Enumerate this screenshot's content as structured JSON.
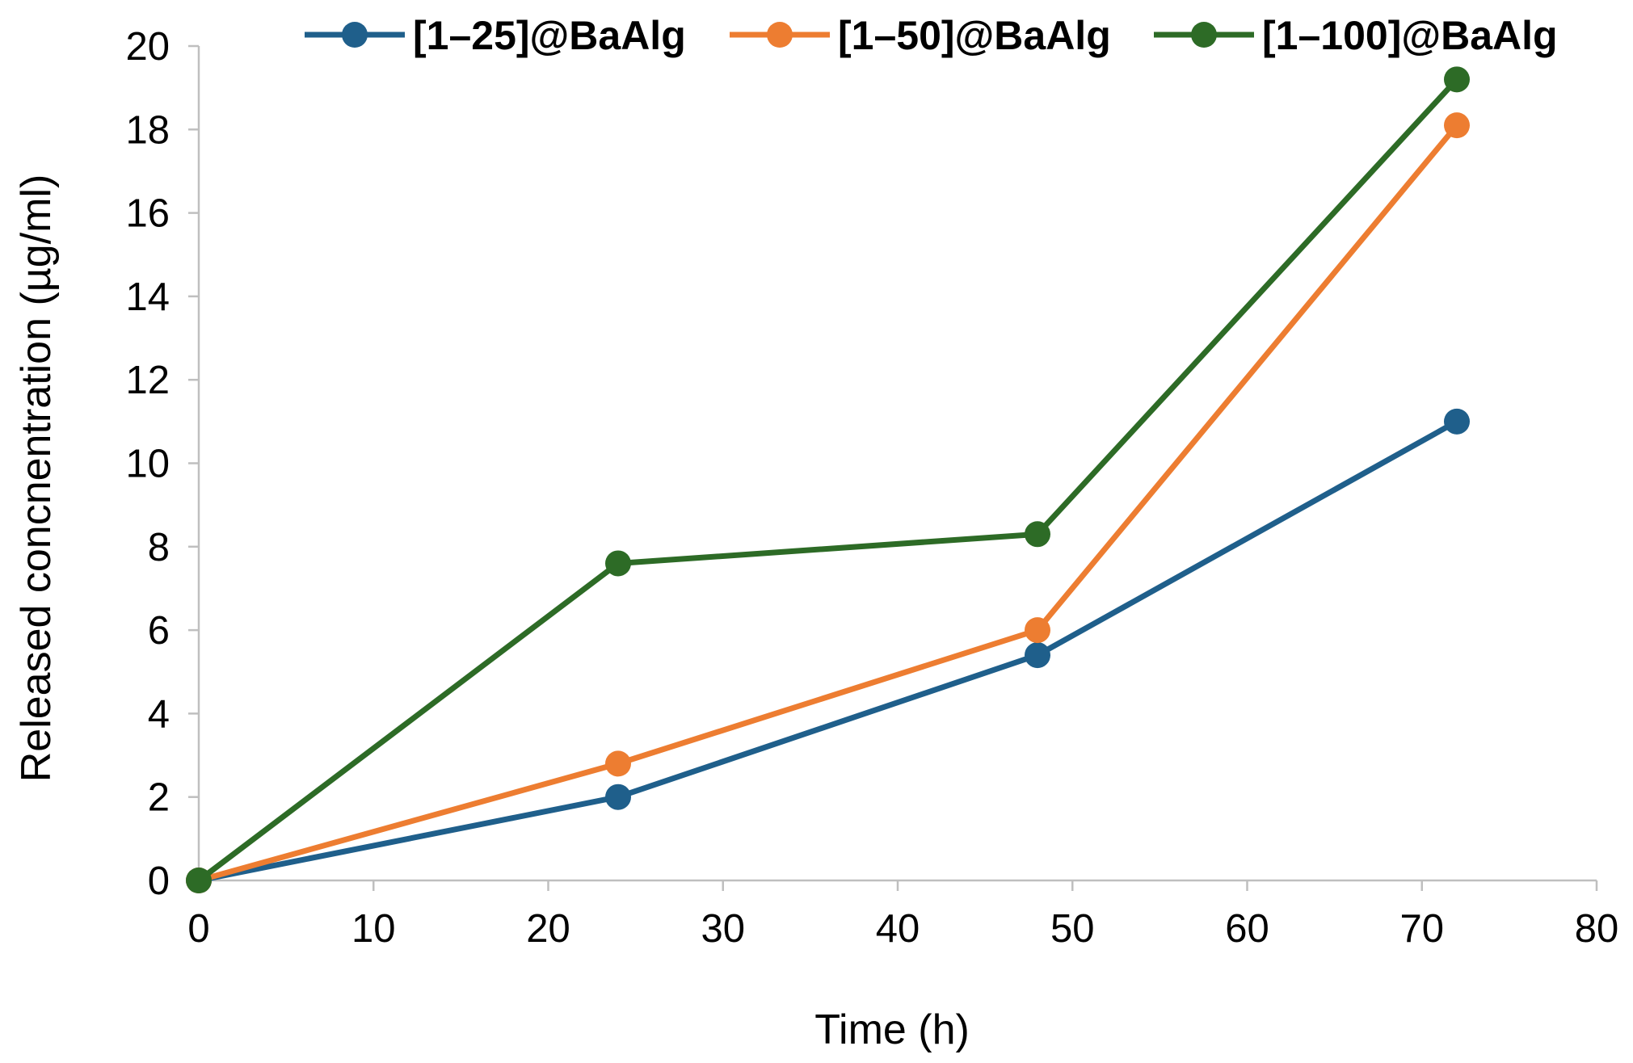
{
  "chart_data": {
    "type": "line",
    "title": "",
    "xlabel": "Time (h)",
    "ylabel": "Released concnentration (µg/ml)",
    "xlim": [
      0,
      80
    ],
    "ylim": [
      0,
      20
    ],
    "xticks": [
      0,
      10,
      20,
      30,
      40,
      50,
      60,
      70,
      80
    ],
    "yticks": [
      0,
      2,
      4,
      6,
      8,
      10,
      12,
      14,
      16,
      18,
      20
    ],
    "grid": false,
    "legend_position": "top",
    "series": [
      {
        "name": "[1–25]@BaAlg",
        "color": "#1f5f8b",
        "x": [
          0,
          24,
          48,
          72
        ],
        "y": [
          0,
          2.0,
          5.4,
          11.0
        ]
      },
      {
        "name": "[1–50]@BaAlg",
        "color": "#ed7d31",
        "x": [
          0,
          24,
          48,
          72
        ],
        "y": [
          0,
          2.8,
          6.0,
          18.1
        ]
      },
      {
        "name": "[1–100]@BaAlg",
        "color": "#2d6b26",
        "x": [
          0,
          24,
          48,
          72
        ],
        "y": [
          0,
          7.6,
          8.3,
          19.2
        ]
      }
    ]
  }
}
